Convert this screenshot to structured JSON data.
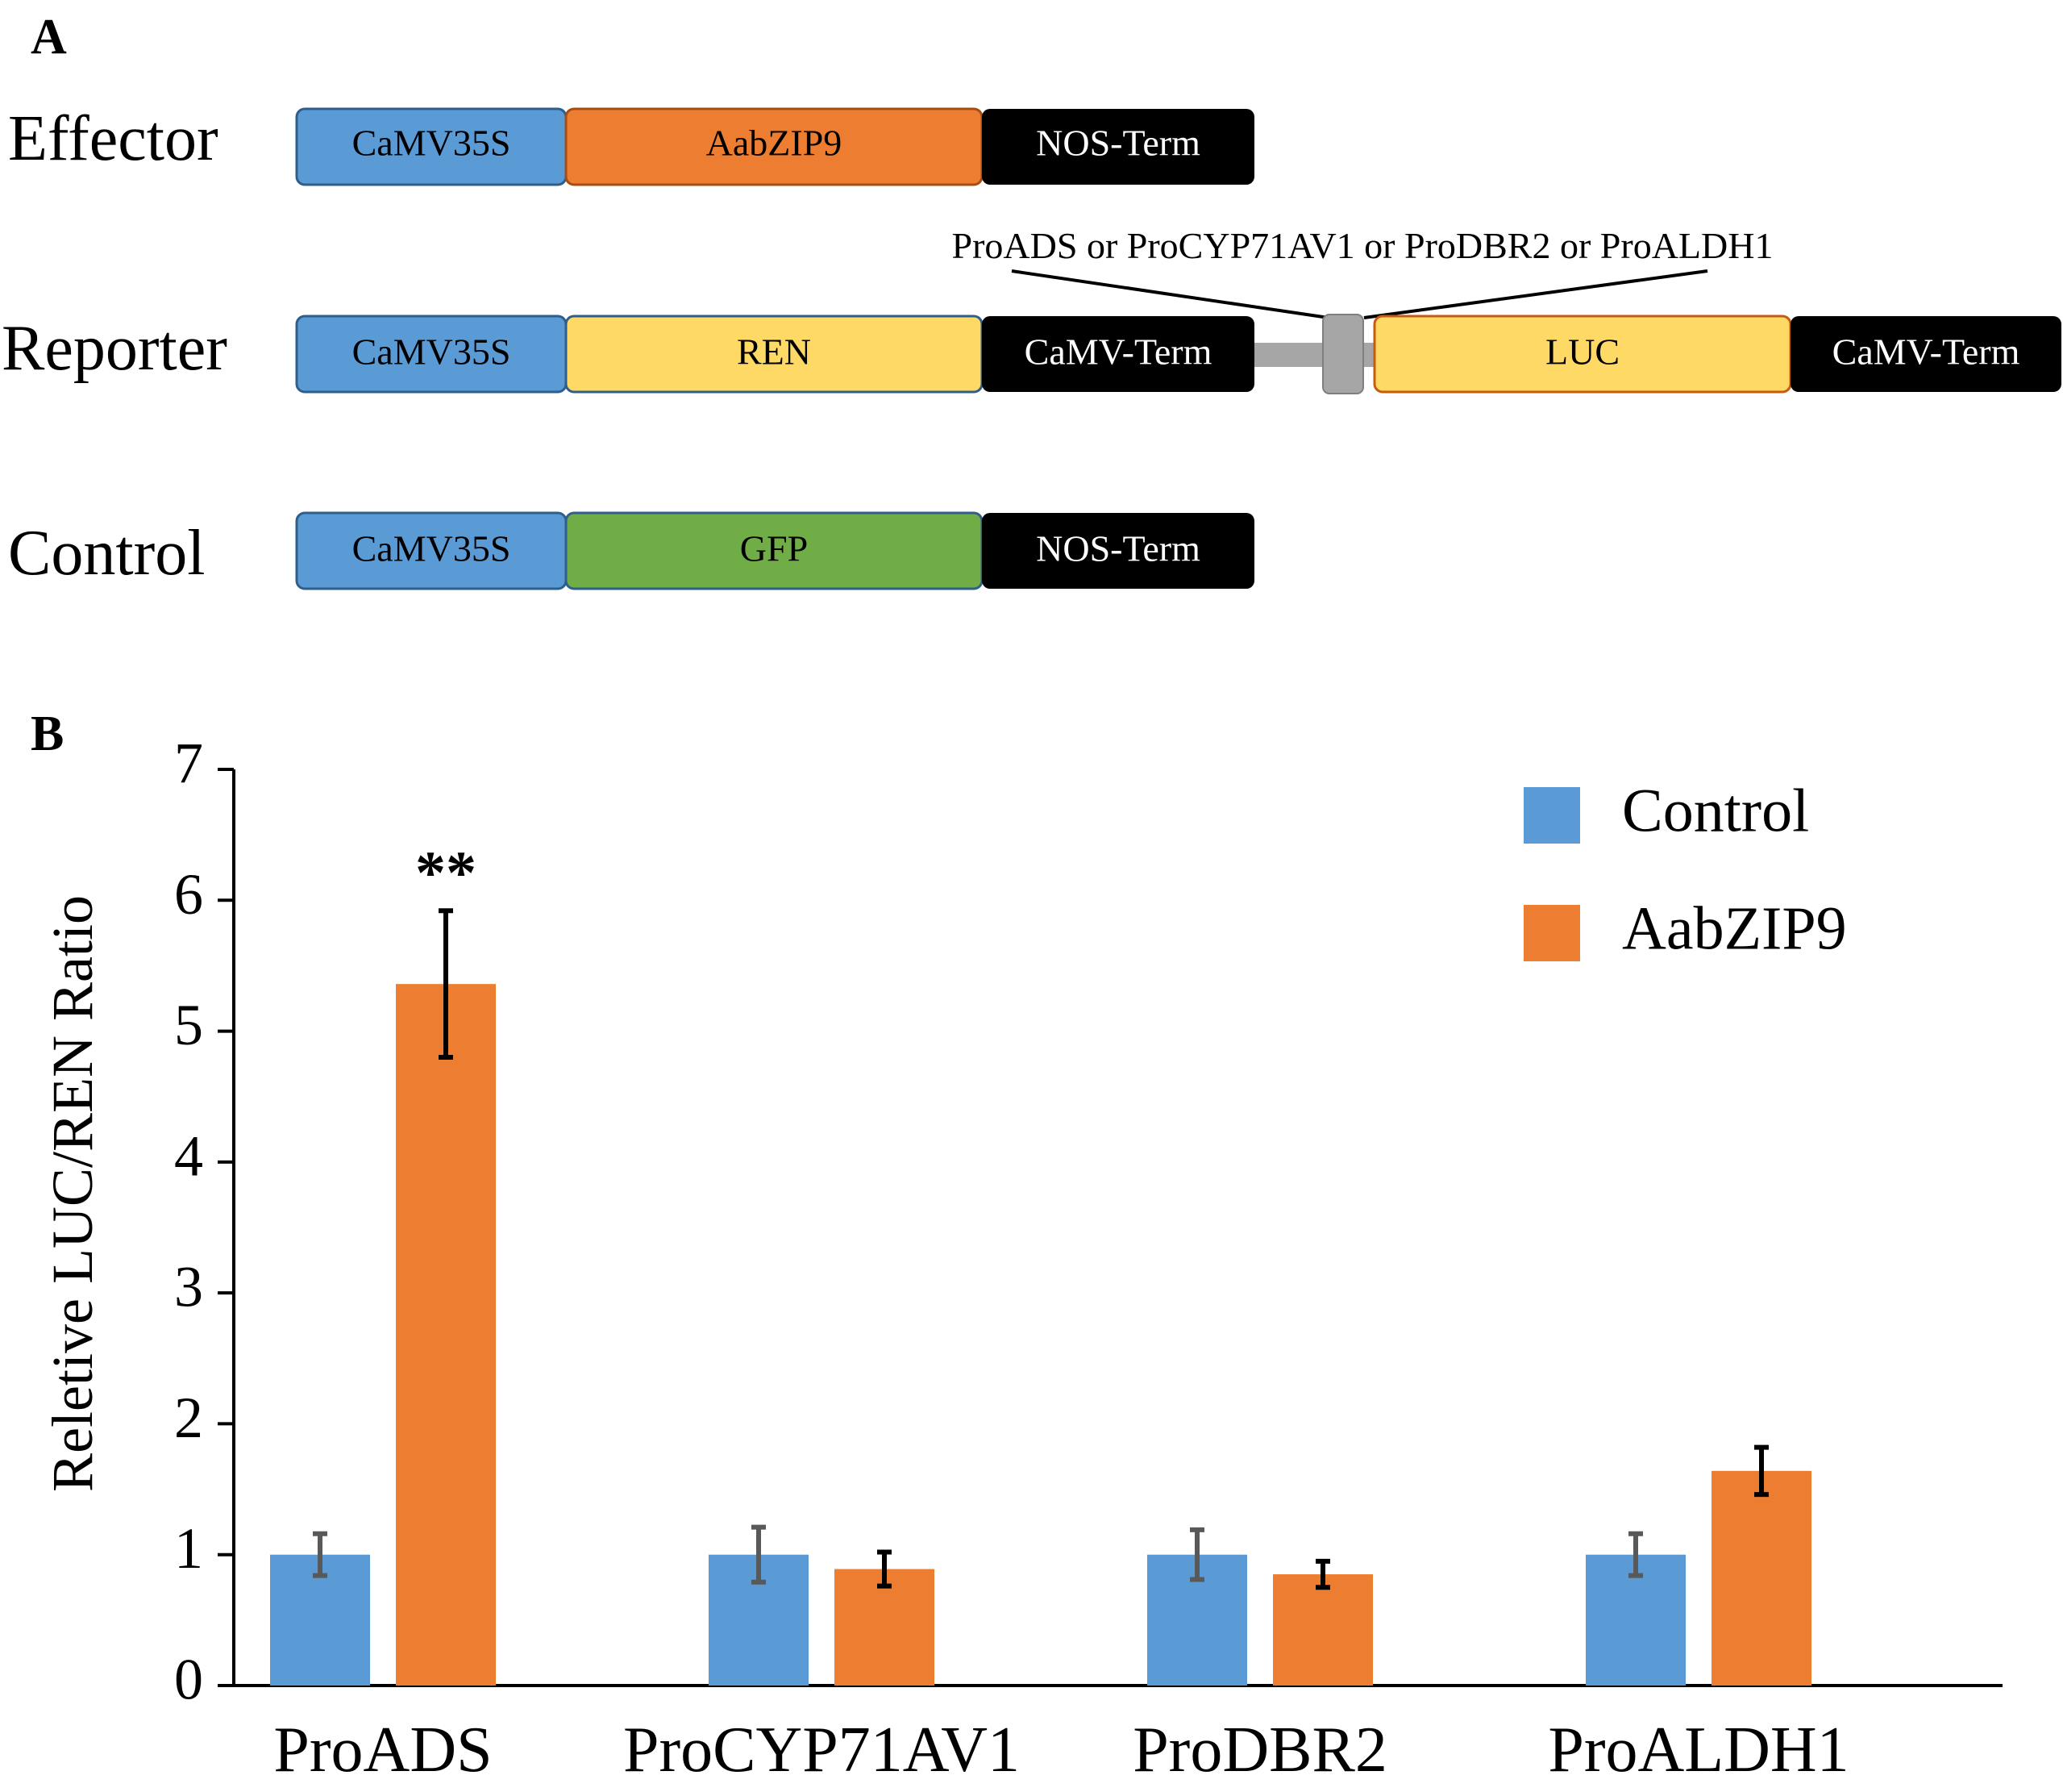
{
  "panel_a": {
    "label": "A",
    "rows": [
      {
        "name": "Effector",
        "segments": [
          {
            "text": "CaMV35S",
            "color": "#5b9bd5",
            "text_color": "#000000"
          },
          {
            "text": "AabZIP9",
            "color": "#ed7d31",
            "text_color": "#000000"
          },
          {
            "text": "NOS-Term",
            "color": "#000000",
            "text_color": "#ffffff"
          }
        ]
      },
      {
        "name": "Reporter",
        "segments": [
          {
            "text": "CaMV35S",
            "color": "#5b9bd5",
            "text_color": "#000000"
          },
          {
            "text": "REN",
            "color": "#ffd966",
            "text_color": "#000000"
          },
          {
            "text": "CaMV-Term",
            "color": "#000000",
            "text_color": "#ffffff"
          },
          {
            "text": "LUC",
            "color": "#ffd966",
            "text_color": "#000000"
          },
          {
            "text": "CaMV-Term",
            "color": "#000000",
            "text_color": "#ffffff"
          }
        ],
        "promoter_callout": "ProADS or ProCYP71AV1 or ProDBR2 or ProALDH1"
      },
      {
        "name": "Control",
        "segments": [
          {
            "text": "CaMV35S",
            "color": "#5b9bd5",
            "text_color": "#000000"
          },
          {
            "text": "GFP",
            "color": "#70ad47",
            "text_color": "#000000"
          },
          {
            "text": "NOS-Term",
            "color": "#000000",
            "text_color": "#ffffff"
          }
        ]
      }
    ],
    "linker_color": "#a6a6a6"
  },
  "panel_b": {
    "label": "B"
  },
  "chart_data": {
    "type": "bar",
    "title": "",
    "xlabel": "",
    "ylabel": "Reletive LUC/REN Ratio",
    "categories": [
      "ProADS",
      "ProCYP71AV1",
      "ProDBR2",
      "ProALDH1"
    ],
    "series": [
      {
        "name": "Control",
        "color": "#5b9bd5",
        "error_color": "#595959",
        "values": [
          1.0,
          1.0,
          1.0,
          1.0
        ],
        "errors": [
          0.16,
          0.21,
          0.19,
          0.16
        ]
      },
      {
        "name": "AabZIP9",
        "color": "#ed7d31",
        "error_color": "#000000",
        "values": [
          5.36,
          0.89,
          0.85,
          1.64
        ],
        "errors": [
          0.56,
          0.13,
          0.1,
          0.18
        ]
      }
    ],
    "ylim": [
      0,
      7
    ],
    "yticks": [
      0,
      1,
      2,
      3,
      4,
      5,
      6,
      7
    ],
    "grid": false,
    "legend_position": "top-right",
    "annotations": [
      {
        "category": "ProADS",
        "series": "AabZIP9",
        "text": "**"
      }
    ]
  }
}
